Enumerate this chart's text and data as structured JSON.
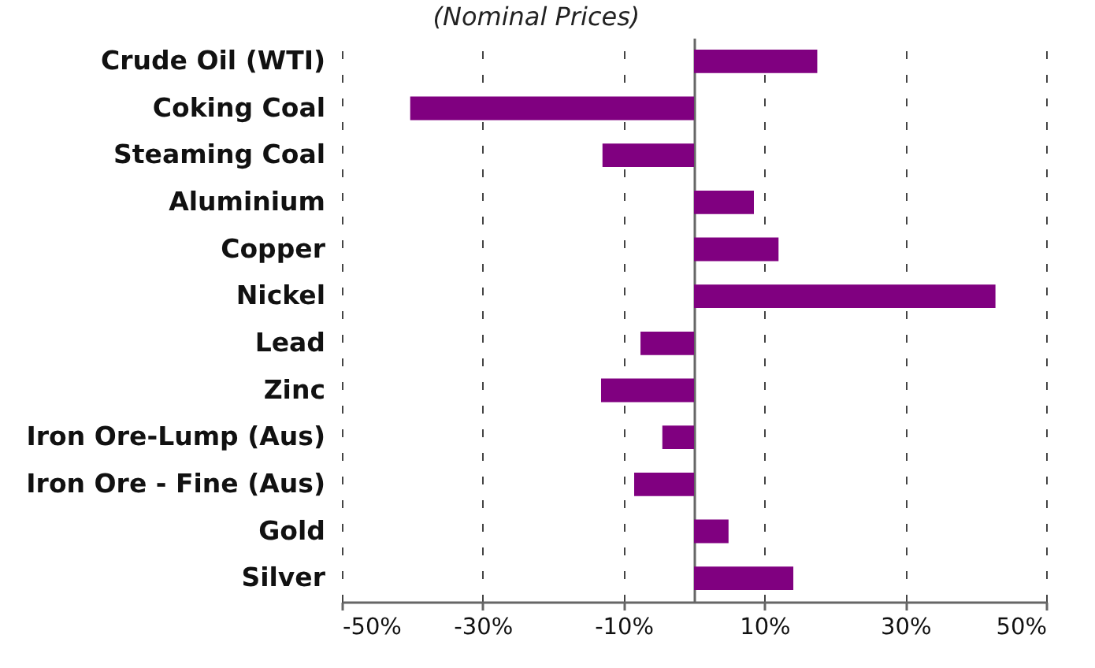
{
  "chart_data": {
    "type": "bar",
    "orientation": "horizontal",
    "title": "(Nominal Prices)",
    "categories": [
      "Crude Oil (WTI)",
      "Coking Coal",
      "Steaming Coal",
      "Aluminium",
      "Copper",
      "Nickel",
      "Lead",
      "Zinc",
      "Iron Ore-Lump (Aus)",
      "Iron Ore - Fine (Aus)",
      "Gold",
      "Silver"
    ],
    "values": [
      17.5,
      -40.3,
      -13.0,
      8.5,
      12.0,
      42.8,
      -7.6,
      -13.2,
      -4.5,
      -8.5,
      4.9,
      14.1
    ],
    "color": "#800080",
    "xlim": [
      -50,
      50
    ],
    "xticks": [
      {
        "value": -50,
        "label": "-50%"
      },
      {
        "value": -30,
        "label": "-30%"
      },
      {
        "value": -10,
        "label": "-10%"
      },
      {
        "value": 10,
        "label": "10%"
      },
      {
        "value": 30,
        "label": "30%"
      },
      {
        "value": 50,
        "label": "50%"
      }
    ],
    "grid": "x"
  }
}
